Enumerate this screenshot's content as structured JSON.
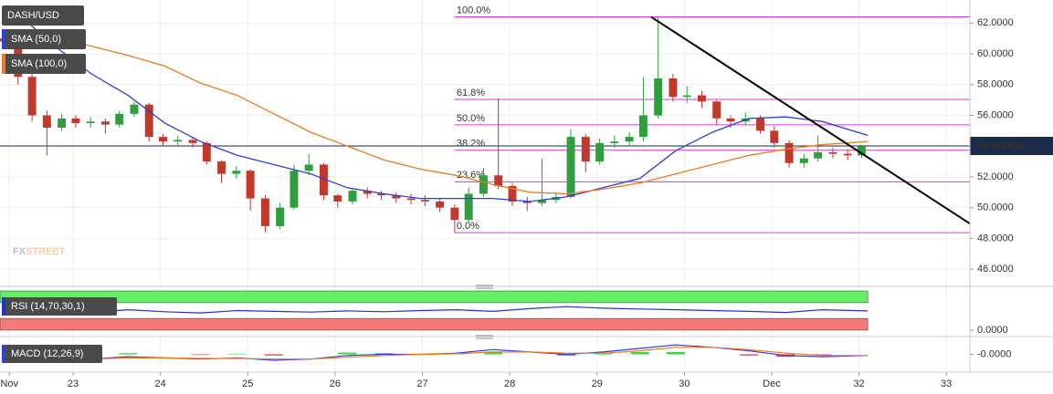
{
  "chart_data": [
    {
      "type": "candlestick",
      "title": "DASH/USD",
      "xlim": [
        22.163,
        33.27
      ],
      "xticks": [
        {
          "value": 22.27,
          "label": "Nov"
        },
        23,
        24,
        25,
        26,
        27,
        28,
        29,
        30,
        {
          "value": 31,
          "label": "Dec"
        },
        32,
        33
      ],
      "ylim": [
        45,
        63.5
      ],
      "yticks": [
        {
          "value": 46,
          "label": "46.0000"
        },
        {
          "value": 48,
          "label": "48.0000"
        },
        {
          "value": 50,
          "label": "50.0000"
        },
        {
          "value": 52,
          "label": "52.0000"
        },
        {
          "value": 54,
          "label": "54.0000"
        },
        {
          "value": 56,
          "label": "56.0000"
        },
        {
          "value": 58,
          "label": "58.0000"
        },
        {
          "value": 60,
          "label": "60.0000"
        },
        {
          "value": 62,
          "label": "62.0000"
        }
      ],
      "grid": true,
      "up_color": "#2e9e3e",
      "down_color": "#c0392b",
      "x": [
        22.2,
        22.37,
        22.53,
        22.7,
        22.87,
        23.03,
        23.2,
        23.37,
        23.53,
        23.7,
        23.87,
        24.03,
        24.2,
        24.37,
        24.53,
        24.7,
        24.87,
        25.03,
        25.2,
        25.37,
        25.53,
        25.7,
        25.87,
        26.03,
        26.2,
        26.37,
        26.53,
        26.7,
        26.87,
        27.03,
        27.2,
        27.37,
        27.53,
        27.7,
        27.87,
        28.03,
        28.2,
        28.37,
        28.53,
        28.7,
        28.87,
        29.03,
        29.2,
        29.37,
        29.53,
        29.7,
        29.87,
        30.03,
        30.2,
        30.37,
        30.53,
        30.7,
        30.87,
        31.03,
        31.2,
        31.37,
        31.53,
        31.7,
        31.87,
        32.03
      ],
      "open": [
        61,
        60.8,
        58.5,
        56,
        55.2,
        55.8,
        55.5,
        55.6,
        55.4,
        56.1,
        56.7,
        54.6,
        54.3,
        54.4,
        54.2,
        53,
        52.2,
        52.4,
        50.6,
        48.8,
        50,
        52.4,
        52.8,
        50.8,
        50.4,
        51.1,
        50.9,
        50.8,
        50.6,
        50.5,
        50.4,
        50,
        49.2,
        50.9,
        52.1,
        51.4,
        50.4,
        50.3,
        50.5,
        50.7,
        54.6,
        53,
        54.2,
        54.3,
        54.6,
        56,
        58.4,
        57.2,
        57.3,
        56.9,
        55.8,
        55.6,
        55.8,
        55,
        54.2,
        52.9,
        53.2,
        53.6,
        53.5,
        53.4
      ],
      "high": [
        61.3,
        61,
        58.7,
        56.3,
        56.1,
        56,
        55.9,
        55.8,
        56.3,
        56.9,
        56.8,
        54.8,
        54.7,
        54.6,
        54.3,
        53.1,
        52.7,
        52.5,
        50.8,
        50.3,
        52.8,
        53.5,
        52.9,
        50.9,
        51.3,
        51.3,
        51.1,
        51,
        50.9,
        50.8,
        50.6,
        50.2,
        51.3,
        52.6,
        57.1,
        51.6,
        50.7,
        53.2,
        51,
        55.1,
        54.8,
        54.5,
        54.7,
        54.9,
        58.5,
        62.4,
        58.7,
        57.9,
        57.6,
        57,
        56,
        56.2,
        56,
        55.3,
        54.4,
        53.5,
        54.7,
        53.9,
        53.8,
        54.1
      ],
      "low": [
        60.4,
        58,
        55.6,
        53.4,
        55,
        55.2,
        55.2,
        54.8,
        55.2,
        55.9,
        54.3,
        54,
        54,
        53.9,
        52.8,
        51.6,
        51.9,
        49.8,
        48.4,
        48.6,
        49.9,
        52.1,
        50.5,
        50,
        50.2,
        50.6,
        50.5,
        50.3,
        50.2,
        50.1,
        49.7,
        48.4,
        49,
        50.7,
        51.2,
        50.1,
        49.8,
        50.1,
        50.3,
        50.6,
        52.3,
        52.8,
        53.9,
        54,
        54.3,
        55.8,
        56.9,
        56.8,
        56.5,
        55.4,
        55.2,
        55.3,
        54.8,
        53.9,
        52.6,
        52.6,
        53,
        53.2,
        53.1,
        53.2
      ],
      "close": [
        60.8,
        58.5,
        56,
        55.2,
        55.8,
        55.5,
        55.6,
        55.4,
        56.1,
        56.7,
        54.6,
        54.3,
        54.4,
        54.2,
        53,
        52.2,
        52.4,
        50.6,
        48.8,
        50,
        52.4,
        52.8,
        50.8,
        50.4,
        51.1,
        50.9,
        50.8,
        50.6,
        50.5,
        50.4,
        50,
        49.2,
        50.9,
        52.1,
        51.4,
        50.4,
        50.3,
        50.5,
        50.7,
        54.6,
        53,
        54.2,
        54.3,
        54.6,
        56,
        58.4,
        57.2,
        57.3,
        56.9,
        55.8,
        55.6,
        55.8,
        55,
        54.2,
        52.9,
        53.2,
        53.6,
        53.5,
        53.4,
        54
      ],
      "series": [
        {
          "name": "SMA (50,0)",
          "color": "#2f3fd6",
          "x": [
            22.37,
            22.79,
            23.21,
            23.63,
            24.05,
            24.46,
            24.88,
            25.3,
            25.72,
            26.14,
            26.56,
            26.98,
            27.39,
            27.81,
            28.23,
            28.65,
            29.07,
            29.49,
            29.9,
            30.32,
            30.74,
            31.16,
            31.58,
            32.1
          ],
          "values": [
            62.6,
            60.5,
            58.7,
            57.3,
            55.5,
            54.3,
            53.4,
            52.8,
            52.2,
            51.3,
            50.9,
            50.6,
            50.6,
            50.6,
            50.4,
            50.7,
            51.3,
            51.9,
            53.7,
            54.9,
            55.8,
            55.9,
            55.6,
            54.7
          ]
        },
        {
          "name": "SMA (100,0)",
          "color": "#f07a22",
          "x": [
            22.37,
            22.79,
            23.21,
            23.63,
            24.05,
            24.46,
            24.88,
            25.3,
            25.72,
            26.14,
            26.56,
            26.98,
            27.39,
            27.81,
            28.23,
            28.65,
            29.07,
            29.49,
            29.9,
            30.32,
            30.74,
            31.16,
            31.58,
            32.1
          ],
          "values": [
            61.4,
            61.1,
            60.5,
            59.9,
            59.2,
            58.1,
            57.3,
            56.1,
            54.9,
            54,
            53.1,
            52.5,
            52.1,
            51.5,
            51,
            50.9,
            51.2,
            51.6,
            52.2,
            52.8,
            53.4,
            53.8,
            54.1,
            54.3
          ]
        }
      ],
      "fib": {
        "color": "#d63ad6",
        "from_x": 27.37,
        "levels": [
          {
            "label": "100.0%",
            "value": 62.4
          },
          {
            "label": "61.8%",
            "value": 57.04
          },
          {
            "label": "50.0%",
            "value": 55.385
          },
          {
            "label": "38.2%",
            "value": 53.73
          },
          {
            "label": "23.6%",
            "value": 51.68
          },
          {
            "label": "0.0%",
            "value": 48.37
          }
        ]
      },
      "trendline": {
        "color": "#000000",
        "x": [
          29.62,
          33.27
        ],
        "y": [
          62.4,
          48.96
        ]
      },
      "last_price": {
        "value": 54.011921,
        "color": "#1c2b48"
      },
      "watermark": [
        "FX",
        "STREET"
      ]
    },
    {
      "type": "rsi",
      "title": "RSI (14,70,30,1)",
      "ylim": [
        0,
        100
      ],
      "yticks": [
        {
          "value": 0,
          "label": "0.0000"
        }
      ],
      "bands": [
        {
          "from": 70,
          "to": 100,
          "color": "#66ee66"
        },
        {
          "from": 0,
          "to": 30,
          "color": "#f47a7a"
        }
      ],
      "color": "#2233cc",
      "x": [
        22.37,
        22.79,
        23.21,
        23.63,
        24.05,
        24.46,
        24.88,
        25.3,
        25.72,
        26.14,
        26.56,
        26.98,
        27.39,
        27.81,
        28.23,
        28.65,
        29.07,
        29.49,
        29.9,
        30.32,
        30.74,
        31.16,
        31.58,
        32.1
      ],
      "values": [
        50,
        48,
        45,
        52,
        47,
        44,
        50,
        48,
        46,
        49,
        47,
        50,
        52,
        48,
        55,
        60,
        56,
        54,
        52,
        50,
        48,
        45,
        52,
        49
      ]
    },
    {
      "type": "macd",
      "title": "MACD (12,26,9)",
      "ylim": [
        -1.2,
        1.2
      ],
      "yticks": [
        {
          "value": 0,
          "label": "-0.0000"
        }
      ],
      "x": [
        22.37,
        22.79,
        23.21,
        23.63,
        24.05,
        24.46,
        24.88,
        25.3,
        25.72,
        26.14,
        26.56,
        26.98,
        27.39,
        27.81,
        28.23,
        28.65,
        29.07,
        29.49,
        29.9,
        30.32,
        30.74,
        31.16,
        31.58,
        32.1
      ],
      "macd": {
        "color": "#2f3fd6",
        "values": [
          -0.3,
          -0.5,
          -0.4,
          -0.2,
          -0.3,
          -0.4,
          -0.3,
          -0.5,
          -0.4,
          -0.1,
          0,
          0,
          0.1,
          0.4,
          0.2,
          0,
          0.2,
          0.5,
          0.8,
          0.6,
          0.3,
          -0.1,
          -0.2,
          -0.1
        ]
      },
      "signal": {
        "color": "#f07a22",
        "values": [
          -0.2,
          -0.4,
          -0.4,
          -0.3,
          -0.3,
          -0.35,
          -0.35,
          -0.4,
          -0.4,
          -0.25,
          -0.1,
          0,
          0.05,
          0.2,
          0.2,
          0.1,
          0.1,
          0.3,
          0.6,
          0.6,
          0.4,
          0.1,
          -0.1,
          -0.1
        ]
      },
      "histogram": {
        "up_color": "#3cd63c",
        "down_color": "#e04040",
        "values": [
          -0.1,
          -0.1,
          0,
          0.1,
          0,
          -0.05,
          0.05,
          -0.1,
          0,
          0.15,
          0.1,
          0,
          0.05,
          0.2,
          0,
          -0.1,
          0.1,
          0.2,
          0.2,
          0,
          -0.1,
          -0.2,
          -0.1,
          0
        ]
      }
    }
  ]
}
